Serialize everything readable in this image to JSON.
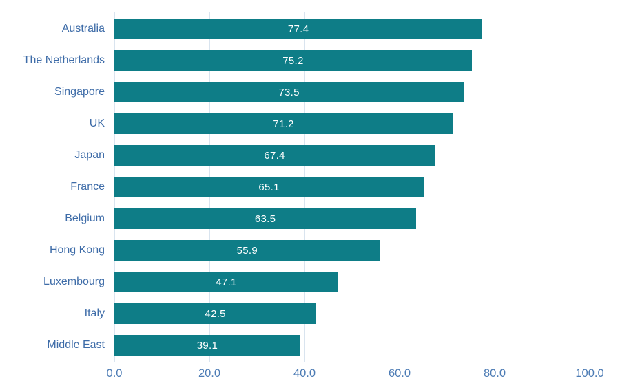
{
  "chart_data": {
    "type": "bar",
    "orientation": "horizontal",
    "title": "",
    "xlabel": "",
    "ylabel": "",
    "categories": [
      "Australia",
      "The Netherlands",
      "Singapore",
      "UK",
      "Japan",
      "France",
      "Belgium",
      "Hong Kong",
      "Luxembourg",
      "Italy",
      "Middle East"
    ],
    "values": [
      77.4,
      75.2,
      73.5,
      71.2,
      67.4,
      65.1,
      63.5,
      55.9,
      47.1,
      42.5,
      39.1
    ],
    "value_labels": [
      "77.4",
      "75.2",
      "73.5",
      "71.2",
      "67.4",
      "65.1",
      "63.5",
      "55.9",
      "47.1",
      "42.5",
      "39.1"
    ],
    "xlim": [
      0,
      100
    ],
    "x_ticks": [
      0,
      20,
      40,
      60,
      80,
      100
    ],
    "x_tick_labels": [
      "0.0",
      "20.0",
      "40.0",
      "60.0",
      "80.0",
      "100.0"
    ],
    "grid": "vertical",
    "legend": "none",
    "colors": {
      "bar": "#0E7D87",
      "value_label": "#FFFFFF",
      "category_label": "#3E6CA8",
      "tick_label": "#4D7CB5",
      "gridline": "#D9E4EF",
      "background": "#FFFFFF"
    }
  }
}
